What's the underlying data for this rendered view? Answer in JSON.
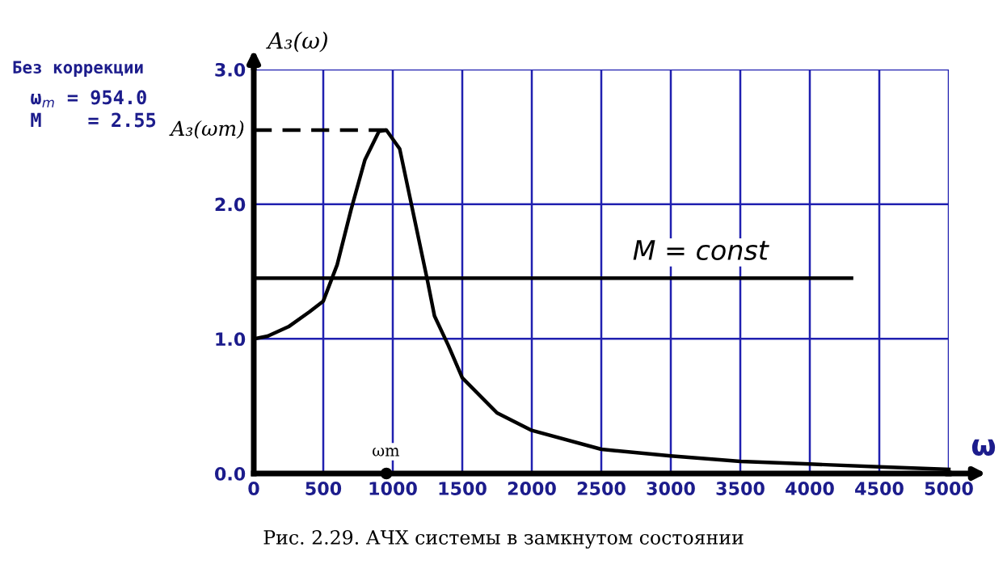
{
  "chart_data": {
    "type": "line",
    "xlabel": "ω",
    "ylabel": "A₃(ω)",
    "x": [
      0,
      100,
      250,
      400,
      500,
      600,
      700,
      800,
      900,
      954,
      1050,
      1150,
      1250,
      1300,
      1400,
      1500,
      1750,
      2000,
      2500,
      3000,
      3500,
      4000,
      4500,
      5000
    ],
    "series": [
      {
        "color": "#000000",
        "values": [
          1.0,
          1.02,
          1.09,
          1.2,
          1.28,
          1.55,
          1.96,
          2.33,
          2.54,
          2.55,
          2.41,
          1.92,
          1.43,
          1.17,
          0.95,
          0.71,
          0.45,
          0.32,
          0.18,
          0.13,
          0.09,
          0.07,
          0.05,
          0.03
        ]
      },
      {
        "color": "#000000",
        "x": [
          0,
          4300
        ],
        "values": [
          1.45,
          1.45
        ]
      },
      {
        "color": "#000000",
        "x": [
          0,
          954
        ],
        "values": [
          2.55,
          2.55
        ],
        "line_style": "dashed"
      },
      {
        "type": "scatter",
        "color": "#000000",
        "x": [
          954
        ],
        "values": [
          0
        ],
        "marker": "circle"
      }
    ],
    "xlim": [
      0,
      5000
    ],
    "ylim": [
      0,
      3.0
    ],
    "xticks": [
      0,
      500,
      1000,
      1500,
      2000,
      2500,
      3000,
      3500,
      4000,
      4500,
      5000
    ],
    "yticks": [
      {
        "value": 0,
        "label": "0.0"
      },
      {
        "value": 1,
        "label": "1.0"
      },
      {
        "value": 2,
        "label": "2.0"
      },
      {
        "value": 3,
        "label": "3.0"
      }
    ],
    "grid": true,
    "annotations": [
      "M = const",
      {
        "text": "A₃(ωm)",
        "x": 0,
        "y": 2.55
      },
      "ωm",
      "Без коррекции",
      "ω$_{m}$ = 954.0",
      "M    = 2.55",
      "Рис. 2.29. АЧХ системы в замкнутом состоянии"
    ]
  }
}
